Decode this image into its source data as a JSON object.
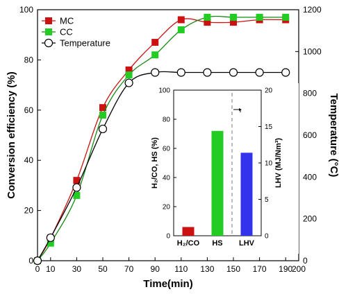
{
  "chart_data": [
    {
      "type": "line",
      "xlabel": "Time(min)",
      "ylabel": "Conversion efficiency (%)",
      "y2label": "Temperature (°C)",
      "xlim": [
        0,
        200
      ],
      "ylim": [
        0,
        100
      ],
      "y2lim": [
        0,
        1200
      ],
      "xticks": [
        "0",
        "10",
        "30",
        "50",
        "70",
        "90",
        "110",
        "130",
        "150",
        "170",
        "190",
        "200"
      ],
      "yticks": [
        "0",
        "20",
        "40",
        "60",
        "80",
        "100"
      ],
      "y2ticks": [
        "0",
        "200",
        "400",
        "600",
        "800",
        "1000",
        "1200"
      ],
      "legend_position": "top-left",
      "series": [
        {
          "name": "MC",
          "axis": "left",
          "color": "#cc1111",
          "marker": "square",
          "x": [
            0,
            10,
            30,
            50,
            70,
            90,
            110,
            130,
            150,
            170,
            190
          ],
          "y": [
            0,
            9,
            32,
            61,
            76,
            87,
            96,
            95,
            95,
            96,
            96
          ]
        },
        {
          "name": "CC",
          "axis": "left",
          "color": "#22cc22",
          "marker": "square",
          "x": [
            0,
            10,
            30,
            50,
            70,
            90,
            110,
            130,
            150,
            170,
            190
          ],
          "y": [
            0,
            7,
            26,
            58,
            74,
            82,
            92,
            97,
            97,
            97,
            97
          ]
        },
        {
          "name": "Temperature",
          "axis": "right",
          "color": "#000000",
          "marker": "open-circle",
          "x": [
            0,
            10,
            30,
            50,
            70,
            90,
            110,
            130,
            150,
            170,
            190
          ],
          "y": [
            0,
            110,
            350,
            630,
            850,
            900,
            900,
            900,
            900,
            900,
            900
          ]
        }
      ]
    },
    {
      "type": "bar",
      "inset": true,
      "categories": [
        "H₂/CO",
        "HS",
        "LHV"
      ],
      "ylabel": "H₂/CO, HS (%)",
      "y2label": "LHV (MJ/Nm³)",
      "ylim": [
        0,
        100
      ],
      "y2lim": [
        0,
        20
      ],
      "yticks": [
        "0",
        "20",
        "40",
        "60",
        "80",
        "100"
      ],
      "y2ticks": [
        "0",
        "5",
        "10",
        "15",
        "20"
      ],
      "bars": [
        {
          "category": "H₂/CO",
          "value": 6,
          "axis": "left",
          "color": "#cc1111"
        },
        {
          "category": "HS",
          "value": 72,
          "axis": "left",
          "color": "#22cc22"
        },
        {
          "category": "LHV",
          "value": 11.4,
          "axis": "right",
          "color": "#3333ee"
        }
      ]
    }
  ]
}
